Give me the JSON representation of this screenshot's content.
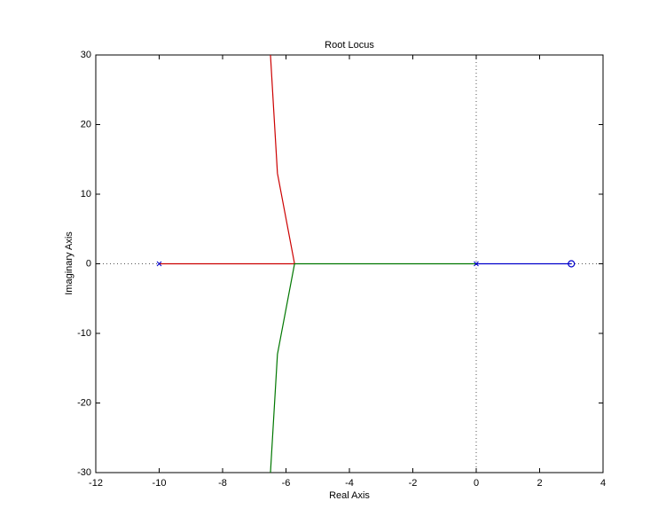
{
  "chart_data": {
    "type": "line",
    "title": "Root Locus",
    "x_label": "Real Axis",
    "y_label": "Imaginary Axis",
    "series": [
      {
        "color": "#cc0000",
        "x": [
          -10,
          -5.73,
          -6.27,
          -6.49
        ],
        "values": [
          0,
          0,
          13,
          30
        ]
      },
      {
        "color": "#007700",
        "x": [
          0,
          -5.73,
          -6.27,
          -6.49
        ],
        "values": [
          0,
          0,
          -13,
          -30
        ]
      },
      {
        "color": "#0000cc",
        "x": [
          0,
          3
        ],
        "values": [
          0,
          0
        ]
      }
    ],
    "poles": {
      "color": "#0000cc",
      "x": [
        -10,
        0
      ],
      "y": [
        0,
        0
      ]
    },
    "zeros": {
      "color": "#0000cc",
      "x": [
        3
      ],
      "y": [
        0
      ]
    },
    "xlim": [
      -12,
      4
    ],
    "ylim": [
      -30,
      30
    ],
    "xticks": [
      -12,
      -10,
      -8,
      -6,
      -4,
      -2,
      0,
      2,
      4
    ],
    "yticks": [
      -30,
      -20,
      -10,
      0,
      10,
      20,
      30
    ]
  }
}
